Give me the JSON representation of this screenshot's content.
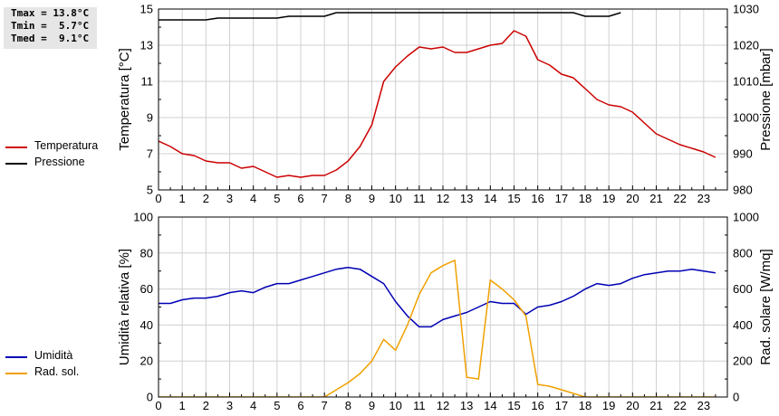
{
  "stats": {
    "tmax": "Tmax = 13.8°C",
    "tmin": "Tmin =  5.7°C",
    "tmed": "Tmed =  9.1°C"
  },
  "legend_top": [
    {
      "label": "Temperatura",
      "color": "#cc0000"
    },
    {
      "label": "Pressione",
      "color": "#000000"
    }
  ],
  "legend_bottom": [
    {
      "label": "Umidità",
      "color": "#0000b4"
    },
    {
      "label": "Rad. sol.",
      "color": "#f0a000"
    }
  ],
  "chart_data": [
    {
      "type": "line",
      "xlim": [
        0,
        24
      ],
      "x_ticks": [
        "0",
        "1",
        "2",
        "3",
        "4",
        "5",
        "6",
        "7",
        "8",
        "9",
        "10",
        "11",
        "12",
        "13",
        "14",
        "15",
        "16",
        "17",
        "18",
        "19",
        "20",
        "21",
        "22",
        "23"
      ],
      "ylabel": "Temperatura [°C]",
      "ylim": [
        5,
        15
      ],
      "y_ticks": [
        "5",
        "7",
        "9",
        "11",
        "13",
        "15"
      ],
      "y2label": "Pressione [mbar]",
      "y2lim": [
        980,
        1030
      ],
      "y2_ticks": [
        "980",
        "990",
        "1000",
        "1010",
        "1020",
        "1030"
      ],
      "grid": true,
      "series": [
        {
          "name": "Temperatura",
          "axis": "left",
          "color": "#cc0000",
          "x": [
            0,
            0.5,
            1,
            1.5,
            2,
            2.5,
            3,
            3.5,
            4,
            4.5,
            5,
            5.5,
            6,
            6.5,
            7,
            7.5,
            8,
            8.5,
            9,
            9.5,
            10,
            10.5,
            11,
            11.5,
            12,
            12.5,
            13,
            13.5,
            14,
            14.5,
            15,
            15.5,
            16,
            16.5,
            17,
            17.5,
            18,
            18.5,
            19,
            19.5,
            20,
            20.5,
            21,
            21.5,
            22,
            22.5,
            23,
            23.5
          ],
          "y": [
            7.7,
            7.4,
            7.0,
            6.9,
            6.6,
            6.5,
            6.5,
            6.2,
            6.3,
            6.0,
            5.7,
            5.8,
            5.7,
            5.8,
            5.8,
            6.1,
            6.6,
            7.4,
            8.6,
            11.0,
            11.8,
            12.4,
            12.9,
            12.8,
            12.9,
            12.6,
            12.6,
            12.8,
            13.0,
            13.1,
            13.8,
            13.5,
            12.2,
            11.9,
            11.4,
            11.2,
            10.6,
            10.0,
            9.7,
            9.6,
            9.3,
            8.7,
            8.1,
            7.8,
            7.5,
            7.3,
            7.1,
            6.8
          ]
        },
        {
          "name": "Pressione",
          "axis": "right",
          "color": "#000000",
          "x": [
            0,
            1,
            2,
            2.5,
            3,
            4,
            5,
            5.5,
            6,
            7,
            7.5,
            17.5,
            18,
            19,
            19.5
          ],
          "y": [
            1027,
            1027,
            1027,
            1027.5,
            1027.5,
            1027.5,
            1027.5,
            1028,
            1028,
            1028,
            1029,
            1029,
            1028,
            1028,
            1029
          ]
        }
      ]
    },
    {
      "type": "line",
      "xlim": [
        0,
        24
      ],
      "x_ticks": [
        "0",
        "1",
        "2",
        "3",
        "4",
        "5",
        "6",
        "7",
        "8",
        "9",
        "10",
        "11",
        "12",
        "13",
        "14",
        "15",
        "16",
        "17",
        "18",
        "19",
        "20",
        "21",
        "22",
        "23"
      ],
      "ylabel": "Umidità relativa [%]",
      "ylim": [
        0,
        100
      ],
      "y_ticks": [
        "0",
        "20",
        "40",
        "60",
        "80",
        "100"
      ],
      "y2label": "Rad. solare [W/mq]",
      "y2lim": [
        0,
        1000
      ],
      "y2_ticks": [
        "0",
        "200",
        "400",
        "600",
        "800",
        "1000"
      ],
      "grid": true,
      "series": [
        {
          "name": "Umidità",
          "axis": "left",
          "color": "#0000b4",
          "x": [
            0,
            0.5,
            1,
            1.5,
            2,
            2.5,
            3,
            3.5,
            4,
            4.5,
            5,
            5.5,
            6,
            6.5,
            7,
            7.5,
            8,
            8.5,
            9,
            9.5,
            10,
            10.5,
            11,
            11.5,
            12,
            12.5,
            13,
            13.5,
            14,
            14.5,
            15,
            15.5,
            16,
            16.5,
            17,
            17.5,
            18,
            18.5,
            19,
            19.5,
            20,
            20.5,
            21,
            21.5,
            22,
            22.5,
            23,
            23.5
          ],
          "y": [
            52,
            52,
            54,
            55,
            55,
            56,
            58,
            59,
            58,
            61,
            63,
            63,
            65,
            67,
            69,
            71,
            72,
            71,
            67,
            63,
            53,
            45,
            39,
            39,
            43,
            45,
            47,
            50,
            53,
            52,
            52,
            46,
            50,
            51,
            53,
            56,
            60,
            63,
            62,
            63,
            66,
            68,
            69,
            70,
            70,
            71,
            70,
            69
          ]
        },
        {
          "name": "Rad. sol.",
          "axis": "right",
          "color": "#f0a000",
          "x": [
            0,
            1,
            2,
            3,
            4,
            5,
            6,
            7,
            7.5,
            8,
            8.5,
            9,
            9.5,
            10,
            10.5,
            11,
            11.5,
            12,
            12.5,
            13,
            13.5,
            14,
            14.5,
            15,
            15.5,
            16,
            16.5,
            17,
            17.5,
            18,
            19,
            20,
            21,
            22,
            23,
            23.5
          ],
          "y": [
            0,
            0,
            0,
            0,
            0,
            0,
            0,
            0,
            40,
            80,
            130,
            200,
            320,
            260,
            400,
            570,
            690,
            730,
            760,
            110,
            100,
            650,
            600,
            540,
            450,
            70,
            60,
            40,
            20,
            0,
            0,
            0,
            0,
            0,
            0,
            0
          ]
        }
      ]
    }
  ]
}
